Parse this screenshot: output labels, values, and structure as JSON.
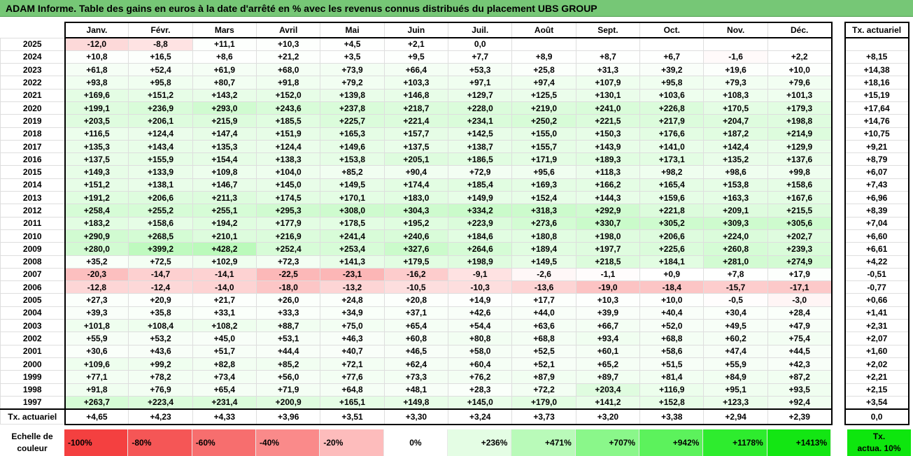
{
  "title": "ADAM Informe. Table des gains en euros à la date d'arrêté en % avec les revenus connus distribués du placement UBS GROUP",
  "months": [
    "Janv.",
    "Févr.",
    "Mars",
    "Avril",
    "Mai",
    "Juin",
    "Juil.",
    "Août",
    "Sept.",
    "Oct.",
    "Nov.",
    "Déc."
  ],
  "tx_header": "Tx. actuariel",
  "rows": [
    {
      "year": "2025",
      "values": [
        "-12,0",
        "-8,8",
        "+11,1",
        "+10,3",
        "+4,5",
        "+2,1",
        "0,0",
        "",
        "",
        "",
        "",
        ""
      ],
      "tx": ""
    },
    {
      "year": "2024",
      "values": [
        "+10,8",
        "+16,5",
        "+8,6",
        "+21,2",
        "+3,5",
        "+9,5",
        "+7,7",
        "+8,9",
        "+8,7",
        "+6,7",
        "-1,6",
        "+2,2"
      ],
      "tx": "+8,15"
    },
    {
      "year": "2023",
      "values": [
        "+61,8",
        "+52,4",
        "+61,9",
        "+68,0",
        "+73,9",
        "+66,4",
        "+53,3",
        "+25,8",
        "+31,3",
        "+39,2",
        "+19,6",
        "+10,0"
      ],
      "tx": "+14,38"
    },
    {
      "year": "2022",
      "values": [
        "+93,8",
        "+95,8",
        "+80,7",
        "+91,8",
        "+79,2",
        "+103,3",
        "+97,1",
        "+97,4",
        "+107,9",
        "+95,8",
        "+79,3",
        "+79,6"
      ],
      "tx": "+18,16"
    },
    {
      "year": "2021",
      "values": [
        "+169,6",
        "+151,2",
        "+143,2",
        "+152,0",
        "+139,8",
        "+146,8",
        "+129,7",
        "+125,5",
        "+130,1",
        "+103,6",
        "+108,3",
        "+101,3"
      ],
      "tx": "+15,19"
    },
    {
      "year": "2020",
      "values": [
        "+199,1",
        "+236,9",
        "+293,0",
        "+243,6",
        "+237,8",
        "+218,7",
        "+228,0",
        "+219,0",
        "+241,0",
        "+226,8",
        "+170,5",
        "+179,3"
      ],
      "tx": "+17,64"
    },
    {
      "year": "2019",
      "values": [
        "+203,5",
        "+206,1",
        "+215,9",
        "+185,5",
        "+225,7",
        "+221,4",
        "+234,1",
        "+250,2",
        "+221,5",
        "+217,9",
        "+204,7",
        "+198,8"
      ],
      "tx": "+14,76"
    },
    {
      "year": "2018",
      "values": [
        "+116,5",
        "+124,4",
        "+147,4",
        "+151,9",
        "+165,3",
        "+157,7",
        "+142,5",
        "+155,0",
        "+150,3",
        "+176,6",
        "+187,2",
        "+214,9"
      ],
      "tx": "+10,75"
    },
    {
      "year": "2017",
      "values": [
        "+135,3",
        "+143,4",
        "+135,3",
        "+124,4",
        "+149,6",
        "+137,5",
        "+138,7",
        "+155,7",
        "+143,9",
        "+141,0",
        "+142,4",
        "+129,9"
      ],
      "tx": "+9,21"
    },
    {
      "year": "2016",
      "values": [
        "+137,5",
        "+155,9",
        "+154,4",
        "+138,3",
        "+153,8",
        "+205,1",
        "+186,5",
        "+171,9",
        "+189,3",
        "+173,1",
        "+135,2",
        "+137,6"
      ],
      "tx": "+8,79"
    },
    {
      "year": "2015",
      "values": [
        "+149,3",
        "+133,9",
        "+109,8",
        "+104,0",
        "+85,2",
        "+90,4",
        "+72,9",
        "+95,6",
        "+118,3",
        "+98,2",
        "+98,6",
        "+99,8"
      ],
      "tx": "+6,07"
    },
    {
      "year": "2014",
      "values": [
        "+151,2",
        "+138,1",
        "+146,7",
        "+145,0",
        "+149,5",
        "+174,4",
        "+185,4",
        "+169,3",
        "+166,2",
        "+165,4",
        "+153,8",
        "+158,6"
      ],
      "tx": "+7,43"
    },
    {
      "year": "2013",
      "values": [
        "+191,2",
        "+206,6",
        "+211,3",
        "+174,5",
        "+170,1",
        "+183,0",
        "+149,9",
        "+152,4",
        "+144,3",
        "+159,6",
        "+163,3",
        "+167,6"
      ],
      "tx": "+6,96"
    },
    {
      "year": "2012",
      "values": [
        "+258,4",
        "+255,2",
        "+255,1",
        "+295,3",
        "+308,0",
        "+304,3",
        "+334,2",
        "+318,3",
        "+292,9",
        "+221,8",
        "+209,1",
        "+215,5"
      ],
      "tx": "+8,39"
    },
    {
      "year": "2011",
      "values": [
        "+183,2",
        "+158,6",
        "+194,2",
        "+177,9",
        "+178,5",
        "+195,2",
        "+223,9",
        "+273,6",
        "+330,7",
        "+305,2",
        "+309,3",
        "+305,6"
      ],
      "tx": "+7,04"
    },
    {
      "year": "2010",
      "values": [
        "+290,9",
        "+268,5",
        "+210,1",
        "+216,9",
        "+241,4",
        "+240,6",
        "+184,6",
        "+180,8",
        "+198,0",
        "+206,6",
        "+224,0",
        "+202,7"
      ],
      "tx": "+6,60"
    },
    {
      "year": "2009",
      "values": [
        "+280,0",
        "+399,2",
        "+428,2",
        "+252,4",
        "+253,4",
        "+327,6",
        "+264,6",
        "+189,4",
        "+197,7",
        "+225,6",
        "+260,8",
        "+239,3"
      ],
      "tx": "+6,61"
    },
    {
      "year": "2008",
      "values": [
        "+35,2",
        "+72,5",
        "+102,9",
        "+72,3",
        "+141,3",
        "+179,5",
        "+198,9",
        "+149,5",
        "+218,5",
        "+184,1",
        "+281,0",
        "+274,9"
      ],
      "tx": "+4,22"
    },
    {
      "year": "2007",
      "values": [
        "-20,3",
        "-14,7",
        "-14,1",
        "-22,5",
        "-23,1",
        "-16,2",
        "-9,1",
        "-2,6",
        "-1,1",
        "+0,9",
        "+7,8",
        "+17,9"
      ],
      "tx": "-0,51"
    },
    {
      "year": "2006",
      "values": [
        "-12,8",
        "-12,4",
        "-14,0",
        "-18,0",
        "-13,2",
        "-10,5",
        "-10,3",
        "-13,6",
        "-19,0",
        "-18,4",
        "-15,7",
        "-17,1"
      ],
      "tx": "-0,77"
    },
    {
      "year": "2005",
      "values": [
        "+27,3",
        "+20,9",
        "+21,7",
        "+26,0",
        "+24,8",
        "+20,8",
        "+14,9",
        "+17,7",
        "+10,3",
        "+10,0",
        "-0,5",
        "-3,0"
      ],
      "tx": "+0,66"
    },
    {
      "year": "2004",
      "values": [
        "+39,3",
        "+35,8",
        "+33,1",
        "+33,3",
        "+34,9",
        "+37,1",
        "+42,6",
        "+44,0",
        "+39,9",
        "+40,4",
        "+30,4",
        "+28,4"
      ],
      "tx": "+1,41"
    },
    {
      "year": "2003",
      "values": [
        "+101,8",
        "+108,4",
        "+108,2",
        "+88,7",
        "+75,0",
        "+65,4",
        "+54,4",
        "+63,6",
        "+66,7",
        "+52,0",
        "+49,5",
        "+47,9"
      ],
      "tx": "+2,31"
    },
    {
      "year": "2002",
      "values": [
        "+55,9",
        "+53,2",
        "+45,0",
        "+53,1",
        "+46,3",
        "+60,8",
        "+80,8",
        "+68,8",
        "+93,4",
        "+68,8",
        "+60,2",
        "+75,4"
      ],
      "tx": "+2,07"
    },
    {
      "year": "2001",
      "values": [
        "+30,6",
        "+43,6",
        "+51,7",
        "+44,4",
        "+40,7",
        "+46,5",
        "+58,0",
        "+52,5",
        "+60,1",
        "+58,6",
        "+47,4",
        "+44,5"
      ],
      "tx": "+1,60"
    },
    {
      "year": "2000",
      "values": [
        "+109,6",
        "+99,2",
        "+82,8",
        "+85,2",
        "+72,1",
        "+62,4",
        "+60,4",
        "+52,1",
        "+65,2",
        "+51,5",
        "+55,9",
        "+42,3"
      ],
      "tx": "+2,02"
    },
    {
      "year": "1999",
      "values": [
        "+77,1",
        "+78,2",
        "+73,4",
        "+56,0",
        "+77,6",
        "+73,3",
        "+76,2",
        "+87,9",
        "+89,7",
        "+81,4",
        "+84,9",
        "+87,2"
      ],
      "tx": "+2,21"
    },
    {
      "year": "1998",
      "values": [
        "+91,8",
        "+76,9",
        "+65,4",
        "+71,9",
        "+64,8",
        "+48,1",
        "+28,3",
        "+72,2",
        "+203,4",
        "+116,9",
        "+95,1",
        "+93,5"
      ],
      "tx": "+2,15"
    },
    {
      "year": "1997",
      "values": [
        "+263,7",
        "+223,4",
        "+231,4",
        "+200,9",
        "+165,1",
        "+149,8",
        "+145,0",
        "+179,0",
        "+141,2",
        "+152,8",
        "+123,3",
        "+92,4"
      ],
      "tx": "+3,54"
    }
  ],
  "footer": {
    "label": "Tx. actuariel",
    "values": [
      "+4,65",
      "+4,23",
      "+4,33",
      "+3,96",
      "+3,51",
      "+3,30",
      "+3,24",
      "+3,73",
      "+3,20",
      "+3,38",
      "+2,94",
      "+2,39"
    ],
    "tx": "0,0"
  },
  "scale": {
    "label_line1": "Echelle de",
    "label_line2": "couleur",
    "items": [
      {
        "label": "-100%",
        "color": "#f44040",
        "align": "l"
      },
      {
        "label": "-80%",
        "color": "#f55656",
        "align": "l"
      },
      {
        "label": "-60%",
        "color": "#f76e6e",
        "align": "l"
      },
      {
        "label": "-40%",
        "color": "#fa8a8a",
        "align": "l"
      },
      {
        "label": "-20%",
        "color": "#fdbcbc",
        "align": "l"
      },
      {
        "label": "0%",
        "color": "#ffffff",
        "align": "c"
      },
      {
        "label": "+236%",
        "color": "#e4fde4",
        "align": "r"
      },
      {
        "label": "+471%",
        "color": "#b9fab9",
        "align": "r"
      },
      {
        "label": "+707%",
        "color": "#8af78a",
        "align": "r"
      },
      {
        "label": "+942%",
        "color": "#5cf25c",
        "align": "r"
      },
      {
        "label": "+1178%",
        "color": "#2eec2e",
        "align": "r"
      },
      {
        "label": "+1413%",
        "color": "#13e613",
        "align": "r"
      }
    ],
    "actua_line1": "Tx.",
    "actua_line2": "actua. 10%"
  }
}
